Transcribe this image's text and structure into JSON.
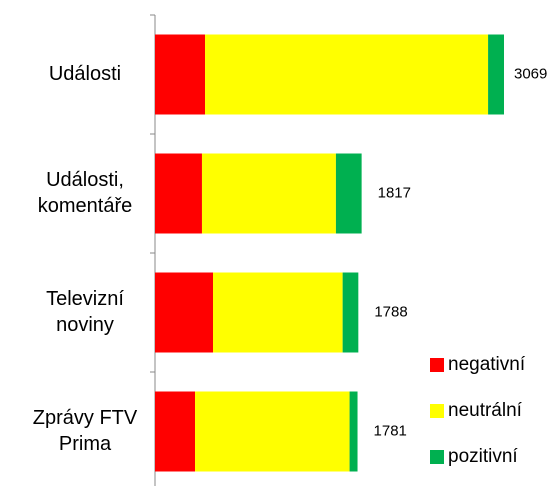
{
  "chart_data": {
    "type": "stacked-bar-horizontal",
    "categories": [
      [
        "Události"
      ],
      [
        "Události,",
        "komentáře"
      ],
      [
        "Televizní",
        "noviny"
      ],
      [
        "Zprávy FTV",
        "Prima"
      ]
    ],
    "series": [
      {
        "name": "negativní",
        "color": "#ff0000",
        "values": [
          440,
          413,
          510,
          352
        ]
      },
      {
        "name": "neutrální",
        "color": "#ffff00",
        "values": [
          2489,
          1178,
          1140,
          1359
        ]
      },
      {
        "name": "pozitivní",
        "color": "#00b050",
        "values": [
          140,
          226,
          138,
          70
        ]
      }
    ],
    "totals": [
      3069,
      1817,
      1788,
      1781
    ]
  }
}
